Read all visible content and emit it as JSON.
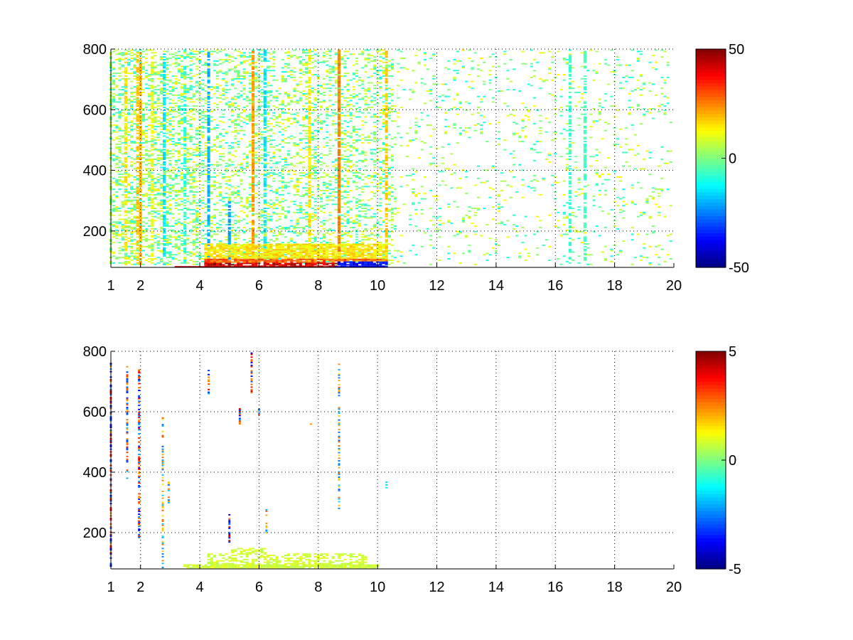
{
  "chart_data": [
    {
      "type": "heatmap",
      "title": "",
      "xlabel": "",
      "ylabel": "",
      "xlim": [
        1,
        20
      ],
      "ylim": [
        80,
        800
      ],
      "x_ticks": [
        1,
        2,
        4,
        6,
        8,
        10,
        12,
        14,
        16,
        18,
        20
      ],
      "x_tick_labels": [
        "1",
        "2",
        "4",
        "6",
        "8",
        "10",
        "12",
        "14",
        "16",
        "18",
        "20"
      ],
      "y_ticks": [
        200,
        400,
        600,
        800
      ],
      "y_tick_labels": [
        "200",
        "400",
        "600",
        "800"
      ],
      "grid": "dotted",
      "colormap": "jet",
      "clim": [
        -50,
        50
      ],
      "colorbar": {
        "placement": "right",
        "ticks": [
          50,
          0,
          -50
        ],
        "tick_labels": [
          "50",
          "0",
          "-50"
        ]
      },
      "vertical_stripes": [
        {
          "x": 1.0,
          "y_max": 800,
          "value": 4,
          "density": 0.3
        },
        {
          "x": 1.5,
          "y_max": 800,
          "value": 15,
          "density": 0.6
        },
        {
          "x": 1.9,
          "y_max": 800,
          "value": 18,
          "density": 0.5
        },
        {
          "x": 2.0,
          "y_max": 800,
          "value": 20,
          "density": 0.8
        },
        {
          "x": 2.4,
          "y_max": 800,
          "value": 12,
          "density": 0.5
        },
        {
          "x": 2.8,
          "y_max": 800,
          "value": -15,
          "density": 0.6
        },
        {
          "x": 3.5,
          "y_max": 800,
          "value": -10,
          "density": 0.4
        },
        {
          "x": 4.3,
          "y_max": 800,
          "value": -20,
          "density": 0.7
        },
        {
          "x": 5.0,
          "y_max": 300,
          "value": -22,
          "density": 0.7
        },
        {
          "x": 5.8,
          "y_max": 800,
          "value": 22,
          "density": 0.8
        },
        {
          "x": 6.2,
          "y_max": 800,
          "value": -15,
          "density": 0.6
        },
        {
          "x": 7.7,
          "y_max": 800,
          "value": 15,
          "density": 0.7
        },
        {
          "x": 8.7,
          "y_max": 800,
          "value": 25,
          "density": 0.95
        },
        {
          "x": 10.3,
          "y_max": 800,
          "value": 18,
          "density": 0.6
        },
        {
          "x": 16.5,
          "y_max": 800,
          "value": -8,
          "density": 0.6
        },
        {
          "x": 17.0,
          "y_max": 800,
          "value": -6,
          "density": 0.6
        }
      ],
      "hot_region": {
        "x_range": [
          4.2,
          10.3
        ],
        "y_range": [
          80,
          160
        ],
        "bottom_values": [
          40,
          45,
          48,
          -40
        ]
      }
    },
    {
      "type": "heatmap",
      "title": "",
      "xlabel": "",
      "ylabel": "",
      "xlim": [
        1,
        20
      ],
      "ylim": [
        80,
        800
      ],
      "x_ticks": [
        1,
        2,
        4,
        6,
        8,
        10,
        12,
        14,
        16,
        18,
        20
      ],
      "x_tick_labels": [
        "1",
        "2",
        "4",
        "6",
        "8",
        "10",
        "12",
        "14",
        "16",
        "18",
        "20"
      ],
      "y_ticks": [
        200,
        400,
        600,
        800
      ],
      "y_tick_labels": [
        "200",
        "400",
        "600",
        "800"
      ],
      "grid": "dotted",
      "colormap": "jet",
      "clim": [
        -5,
        5
      ],
      "colorbar": {
        "placement": "right",
        "ticks": [
          5,
          0,
          -5
        ],
        "tick_labels": [
          "5",
          "0",
          "-5"
        ]
      },
      "vertical_stripes": [
        {
          "x": 1.0,
          "y_min": 80,
          "y_max": 760,
          "value": 4.5
        },
        {
          "x": 1.55,
          "y_min": 380,
          "y_max": 750,
          "value": -3.5
        },
        {
          "x": 1.95,
          "y_min": 180,
          "y_max": 740,
          "value": 4.0
        },
        {
          "x": 2.75,
          "y_min": 80,
          "y_max": 580,
          "value": -3.0
        },
        {
          "x": 2.95,
          "y_min": 290,
          "y_max": 370,
          "value": 3.5
        },
        {
          "x": 4.3,
          "y_min": 660,
          "y_max": 740,
          "value": -4.0
        },
        {
          "x": 5.0,
          "y_min": 160,
          "y_max": 270,
          "value": -4.5
        },
        {
          "x": 5.35,
          "y_min": 560,
          "y_max": 630,
          "value": 4.0
        },
        {
          "x": 5.75,
          "y_min": 650,
          "y_max": 800,
          "value": -4.5
        },
        {
          "x": 6.0,
          "y_min": 590,
          "y_max": 620,
          "value": 3.5
        },
        {
          "x": 6.25,
          "y_min": 190,
          "y_max": 280,
          "value": -3.0
        },
        {
          "x": 7.75,
          "y_min": 550,
          "y_max": 570,
          "value": 2.0
        },
        {
          "x": 8.7,
          "y_min": 280,
          "y_max": 760,
          "value": 3.0
        },
        {
          "x": 10.3,
          "y_min": 340,
          "y_max": 370,
          "value": -1.5
        }
      ],
      "low_region": {
        "x_range": [
          3.5,
          10.0
        ],
        "y_range": [
          80,
          150
        ],
        "value": 0.8
      }
    }
  ],
  "colors": {
    "grid": "#000000",
    "axes": "#000000",
    "background": "#ffffff"
  }
}
